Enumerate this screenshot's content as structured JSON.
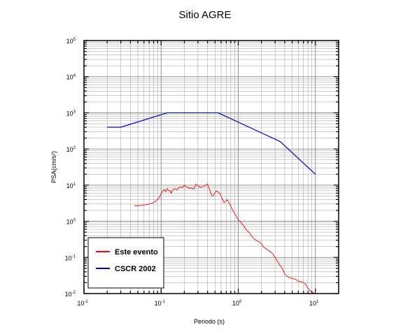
{
  "chart_data": {
    "type": "line",
    "title": "Sitio AGRE",
    "xlabel": "Periodo (s)",
    "ylabel": "PSA(cm/s²)",
    "xscale": "log",
    "yscale": "log",
    "xlim": [
      0.01,
      20
    ],
    "ylim": [
      0.01,
      100000
    ],
    "grid": true,
    "legend_position": "bottom-left",
    "x_ticks": [
      {
        "base": "10",
        "exp": "-2",
        "value": 0.01
      },
      {
        "base": "10",
        "exp": "-1",
        "value": 0.1
      },
      {
        "base": "10",
        "exp": "0",
        "value": 1
      },
      {
        "base": "10",
        "exp": "1",
        "value": 10
      }
    ],
    "y_ticks": [
      {
        "base": "10",
        "exp": "-2",
        "value": 0.01
      },
      {
        "base": "10",
        "exp": "-1",
        "value": 0.1
      },
      {
        "base": "10",
        "exp": "0",
        "value": 1
      },
      {
        "base": "10",
        "exp": "1",
        "value": 10
      },
      {
        "base": "10",
        "exp": "2",
        "value": 100
      },
      {
        "base": "10",
        "exp": "3",
        "value": 1000
      },
      {
        "base": "10",
        "exp": "4",
        "value": 10000
      },
      {
        "base": "10",
        "exp": "5",
        "value": 100000
      }
    ],
    "series": [
      {
        "name": "Este evento",
        "color": "#ff0000",
        "points": [
          [
            0.045,
            2.7
          ],
          [
            0.05,
            2.7
          ],
          [
            0.055,
            2.75
          ],
          [
            0.06,
            2.8
          ],
          [
            0.065,
            2.9
          ],
          [
            0.07,
            3.0
          ],
          [
            0.075,
            3.1
          ],
          [
            0.08,
            3.3
          ],
          [
            0.085,
            3.6
          ],
          [
            0.09,
            4.0
          ],
          [
            0.095,
            4.6
          ],
          [
            0.1,
            5.8
          ],
          [
            0.105,
            6.8
          ],
          [
            0.11,
            7.6
          ],
          [
            0.115,
            6.6
          ],
          [
            0.12,
            8.0
          ],
          [
            0.125,
            7.0
          ],
          [
            0.13,
            7.2
          ],
          [
            0.135,
            5.9
          ],
          [
            0.14,
            7.0
          ],
          [
            0.15,
            8.1
          ],
          [
            0.16,
            7.4
          ],
          [
            0.17,
            8.5
          ],
          [
            0.18,
            8.9
          ],
          [
            0.19,
            8.5
          ],
          [
            0.2,
            10.0
          ],
          [
            0.21,
            9.0
          ],
          [
            0.22,
            8.8
          ],
          [
            0.23,
            8.0
          ],
          [
            0.24,
            8.5
          ],
          [
            0.25,
            8.2
          ],
          [
            0.26,
            7.8
          ],
          [
            0.27,
            8.3
          ],
          [
            0.28,
            10.5
          ],
          [
            0.3,
            9.8
          ],
          [
            0.32,
            8.6
          ],
          [
            0.34,
            8.9
          ],
          [
            0.36,
            9.2
          ],
          [
            0.38,
            10.1
          ],
          [
            0.4,
            10.6
          ],
          [
            0.42,
            8.0
          ],
          [
            0.44,
            6.1
          ],
          [
            0.46,
            4.9
          ],
          [
            0.48,
            5.3
          ],
          [
            0.5,
            6.2
          ],
          [
            0.52,
            6.9
          ],
          [
            0.55,
            6.4
          ],
          [
            0.58,
            5.9
          ],
          [
            0.6,
            5.0
          ],
          [
            0.62,
            4.2
          ],
          [
            0.65,
            3.3
          ],
          [
            0.68,
            3.5
          ],
          [
            0.72,
            3.9
          ],
          [
            0.76,
            3.3
          ],
          [
            0.8,
            2.6
          ],
          [
            0.85,
            2.0
          ],
          [
            0.9,
            1.65
          ],
          [
            0.95,
            1.35
          ],
          [
            1.0,
            1.1
          ],
          [
            1.1,
            0.9
          ],
          [
            1.2,
            0.7
          ],
          [
            1.3,
            0.55
          ],
          [
            1.4,
            0.48
          ],
          [
            1.5,
            0.38
          ],
          [
            1.6,
            0.33
          ],
          [
            1.7,
            0.3
          ],
          [
            1.8,
            0.28
          ],
          [
            1.9,
            0.26
          ],
          [
            2.0,
            0.24
          ],
          [
            2.1,
            0.2
          ],
          [
            2.2,
            0.185
          ],
          [
            2.4,
            0.16
          ],
          [
            2.6,
            0.145
          ],
          [
            2.8,
            0.125
          ],
          [
            3.0,
            0.1
          ],
          [
            3.2,
            0.08
          ],
          [
            3.4,
            0.065
          ],
          [
            3.6,
            0.055
          ],
          [
            3.8,
            0.045
          ],
          [
            4.0,
            0.035
          ],
          [
            4.3,
            0.03
          ],
          [
            4.6,
            0.028
          ],
          [
            5.0,
            0.026
          ],
          [
            5.5,
            0.025
          ],
          [
            6.0,
            0.022
          ],
          [
            6.5,
            0.021
          ],
          [
            7.0,
            0.02
          ],
          [
            7.5,
            0.018
          ],
          [
            8.0,
            0.014
          ],
          [
            8.5,
            0.012
          ],
          [
            9.0,
            0.011
          ],
          [
            10.0,
            0.0098
          ]
        ]
      },
      {
        "name": "CSCR 2002",
        "color": "#0000cc",
        "points": [
          [
            0.02,
            400
          ],
          [
            0.03,
            400
          ],
          [
            0.12,
            1000
          ],
          [
            0.55,
            1000
          ],
          [
            3.5,
            160
          ],
          [
            10.0,
            20
          ]
        ]
      }
    ]
  }
}
